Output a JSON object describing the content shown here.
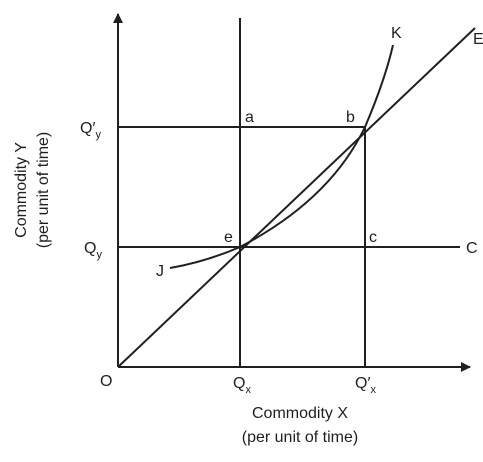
{
  "axes": {
    "origin": "O",
    "y_label": [
      "Commodity Y",
      "(per unit of time)"
    ],
    "x_label": [
      "Commodity X",
      "(per unit of time)"
    ]
  },
  "ticks": {
    "qy_prime": {
      "main": "Q′",
      "sub": "y"
    },
    "qy": {
      "main": "Q",
      "sub": "y"
    },
    "qx": {
      "main": "Q",
      "sub": "x"
    },
    "qx_prime": {
      "main": "Q′",
      "sub": "x"
    }
  },
  "points": {
    "a": "a",
    "b": "b",
    "e": "e",
    "c": "c"
  },
  "curves": {
    "C": "C",
    "E": "E",
    "J": "J",
    "K": "K"
  }
}
